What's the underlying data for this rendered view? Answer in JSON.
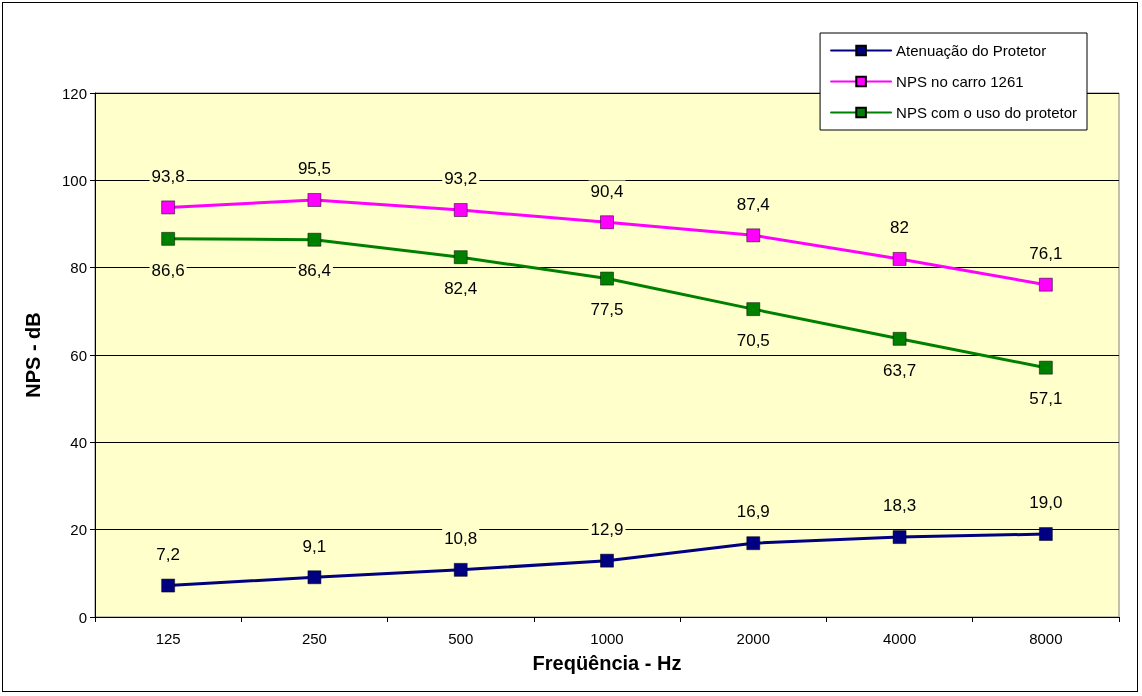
{
  "chart_data": {
    "type": "line",
    "xlabel": "Freqüência - Hz",
    "ylabel": "NPS - dB",
    "categories": [
      "125",
      "250",
      "500",
      "1000",
      "2000",
      "4000",
      "8000"
    ],
    "series": [
      {
        "name": "Atenuação do Protetor",
        "color": "#000080",
        "values": [
          7.2,
          9.1,
          10.8,
          12.9,
          16.9,
          18.3,
          19.0
        ],
        "value_labels": [
          "7,2",
          "9,1",
          "10,8",
          "12,9",
          "16,9",
          "18,3",
          "19,0"
        ]
      },
      {
        "name": "NPS no carro 1261",
        "color": "#ff00ff",
        "values": [
          93.8,
          95.5,
          93.2,
          90.4,
          87.4,
          82,
          76.1
        ],
        "value_labels": [
          "93,8",
          "95,5",
          "93,2",
          "90,4",
          "87,4",
          "82",
          "76,1"
        ]
      },
      {
        "name": "NPS com o uso do protetor",
        "color": "#008000",
        "values": [
          86.6,
          86.4,
          82.4,
          77.5,
          70.5,
          63.7,
          57.1
        ],
        "value_labels": [
          "86,6",
          "86,4",
          "82,4",
          "77,5",
          "70,5",
          "63,7",
          "57,1"
        ]
      }
    ],
    "ylim": [
      0,
      120
    ],
    "yticks": [
      0,
      20,
      40,
      60,
      80,
      100,
      120
    ],
    "grid": "y",
    "legend": "top right",
    "marker": "square",
    "line_style": "solid"
  }
}
